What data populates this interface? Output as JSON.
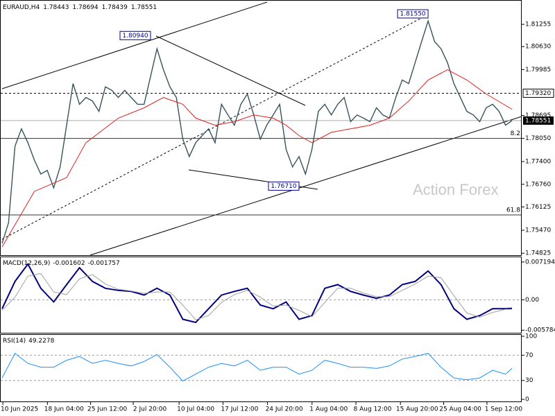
{
  "chart_data": [
    {
      "type": "line",
      "title": "EURAUD,H4",
      "ohlc": [
        1.78443,
        1.78694,
        1.78439,
        1.78551
      ],
      "watermark": "Action Forex",
      "ylim": [
        1.7477,
        1.819
      ],
      "yticks": [
        1.81255,
        {
          "value": 1.8063,
          "label": "1.80630"
        },
        1.79985,
        1.78695,
        {
          "value": 1.7805,
          "label": "1.78050"
        },
        {
          "value": 1.774,
          "label": "1.77400"
        },
        {
          "value": 1.7676,
          "label": "1.76760"
        },
        1.76125,
        {
          "value": 1.7547,
          "label": "1.75470"
        },
        1.74825
      ],
      "current": {
        "value": 1.78551,
        "label": "1.78551"
      },
      "levels": [
        {
          "value": 1.7932,
          "label": "1.79320"
        }
      ],
      "fib": [
        {
          "value": 1.7805,
          "label": "8.2"
        },
        {
          "value": 1.759,
          "label": "61.8"
        }
      ],
      "annotations": [
        {
          "x": 23,
          "value": 1.8094,
          "label": "1.80940"
        },
        {
          "x": 66,
          "value": 1.8155,
          "label": "1.81550"
        },
        {
          "x": 46,
          "value": 1.7671,
          "label": "1.76710"
        }
      ],
      "series": [
        {
          "color": "#36525a",
          "values": [
            1.751,
            1.7568,
            1.7783,
            1.7832,
            1.7793,
            1.7744,
            1.7705,
            1.7715,
            1.7666,
            1.7725,
            1.7842,
            1.7959,
            1.7901,
            1.792,
            1.791,
            1.7881,
            1.795,
            1.794,
            1.792,
            1.794,
            1.792,
            1.7901,
            1.7901,
            1.7979,
            1.8057,
            1.7998,
            1.795,
            1.792,
            1.7803,
            1.7754,
            1.7793,
            1.7813,
            1.7832,
            1.7793,
            1.7901,
            1.7871,
            1.7842,
            1.7901,
            1.793,
            1.7871,
            1.7803,
            1.7842,
            1.7871,
            1.7901,
            1.7774,
            1.7725,
            1.7754,
            1.7705,
            1.7774,
            1.7881,
            1.7901,
            1.7871,
            1.7901,
            1.792,
            1.7852,
            1.7871,
            1.7862,
            1.7852,
            1.7891,
            1.7871,
            1.7862,
            1.792,
            1.7969,
            1.7959,
            1.8018,
            1.8077,
            1.8135,
            1.8077,
            1.8057,
            1.8018,
            1.7959,
            1.792,
            1.7881,
            1.7871,
            1.7852,
            1.7891,
            1.7901,
            1.7881,
            1.7842,
            1.7855
          ]
        },
        {
          "color": "#e02020",
          "x": [
            0,
            5,
            10,
            13,
            18,
            22,
            25,
            28,
            30,
            33,
            36,
            39,
            42,
            44,
            46,
            48,
            51,
            54,
            57,
            60,
            63,
            66,
            69,
            72,
            75,
            79
          ],
          "values": [
            1.75,
            1.7656,
            1.7695,
            1.7793,
            1.7862,
            1.7891,
            1.792,
            1.7901,
            1.7862,
            1.7842,
            1.7852,
            1.7871,
            1.7862,
            1.7842,
            1.7813,
            1.7793,
            1.7822,
            1.7832,
            1.7842,
            1.7862,
            1.791,
            1.7969,
            1.7998,
            1.7969,
            1.793,
            1.7887
          ]
        }
      ]
    },
    {
      "type": "line",
      "title": "MACD(12,26,9)",
      "readout": [
        -0.001602,
        -0.001757
      ],
      "ylim": [
        -0.00628,
        0.00811
      ],
      "yticks": [
        0.007194,
        {
          "value": 0,
          "label": "0.00"
        },
        -0.005784
      ],
      "x": [
        0,
        2,
        4,
        6,
        8,
        10,
        12,
        14,
        16,
        18,
        20,
        22,
        24,
        26,
        28,
        30,
        32,
        34,
        36,
        38,
        40,
        42,
        44,
        46,
        48,
        50,
        52,
        54,
        56,
        58,
        60,
        62,
        64,
        66,
        68,
        70,
        72,
        74,
        76,
        78,
        79
      ],
      "series": [
        {
          "color": "#000080",
          "values": [
            -0.0017,
            0.0035,
            0.0068,
            0.0022,
            -0.0004,
            0.0029,
            0.0061,
            0.0035,
            0.0022,
            0.0018,
            0.0016,
            0.0009,
            0.0022,
            0.0009,
            -0.0037,
            -0.0043,
            -0.0017,
            0.0009,
            0.0016,
            0.0022,
            -0.001,
            -0.0017,
            -0.0004,
            -0.0037,
            -0.003,
            0.0022,
            0.0029,
            0.0016,
            0.0009,
            0.0003,
            0.0009,
            0.0029,
            0.0035,
            0.0055,
            0.0029,
            -0.0017,
            -0.0037,
            -0.003,
            -0.0017,
            -0.0017,
            -0.0016
          ]
        },
        {
          "color": "#a0a0a0",
          "values": [
            -0.002,
            0.0005,
            0.0045,
            0.005,
            0.0015,
            0.001,
            0.004,
            0.0048,
            0.003,
            0.002,
            0.0017,
            0.0012,
            0.0015,
            0.0015,
            -0.001,
            -0.0038,
            -0.003,
            -0.0005,
            0.001,
            0.0018,
            0.0005,
            -0.0012,
            -0.001,
            -0.002,
            -0.0032,
            -0.0005,
            0.0022,
            0.0022,
            0.0013,
            0.0006,
            0.0006,
            0.0018,
            0.003,
            0.0045,
            0.0042,
            0.0008,
            -0.0025,
            -0.0033,
            -0.0024,
            -0.0018,
            -0.0018
          ]
        }
      ]
    },
    {
      "type": "line",
      "title": "RSI(14)",
      "readout": 49.2278,
      "ylim": [
        -4.4,
        102.2
      ],
      "yticks": [
        100,
        70,
        30,
        0
      ],
      "x": [
        0,
        2,
        4,
        6,
        8,
        10,
        12,
        14,
        16,
        18,
        20,
        22,
        24,
        26,
        28,
        30,
        32,
        34,
        36,
        38,
        40,
        42,
        44,
        46,
        48,
        50,
        52,
        54,
        56,
        58,
        60,
        62,
        64,
        66,
        68,
        70,
        72,
        74,
        76,
        78,
        79
      ],
      "xlim": [
        0,
        79
      ],
      "xticks": [
        {
          "value": 2.7,
          "label": "10 Jun 2025"
        },
        {
          "value": 9.6,
          "label": "18 Jun 04:00"
        },
        {
          "value": 16.3,
          "label": "25 Jun 12:00"
        },
        {
          "value": 22.9,
          "label": "2 Jul 20:00"
        },
        {
          "value": 30.0,
          "label": "10 Jul 04:00"
        },
        {
          "value": 36.8,
          "label": "17 Jul 12:00"
        },
        {
          "value": 43.7,
          "label": "24 Jul 20:00"
        },
        {
          "value": 50.6,
          "label": "1 Aug 04:00"
        },
        {
          "value": 57.4,
          "label": "8 Aug 12:00"
        },
        {
          "value": 64.3,
          "label": "15 Aug 20:00"
        },
        {
          "value": 71.0,
          "label": "25 Aug 04:00"
        },
        {
          "value": 77.7,
          "label": "1 Sep 12:00"
        }
      ],
      "series": [
        {
          "color": "#1e90ff",
          "values": [
            34,
            73,
            57,
            51,
            51,
            62,
            68,
            57,
            62,
            57,
            53,
            60,
            71,
            51,
            29,
            40,
            51,
            57,
            53,
            62,
            46,
            51,
            51,
            40,
            46,
            62,
            57,
            51,
            51,
            49,
            53,
            64,
            68,
            73,
            51,
            34,
            31,
            34,
            46,
            40,
            49
          ]
        }
      ]
    }
  ]
}
